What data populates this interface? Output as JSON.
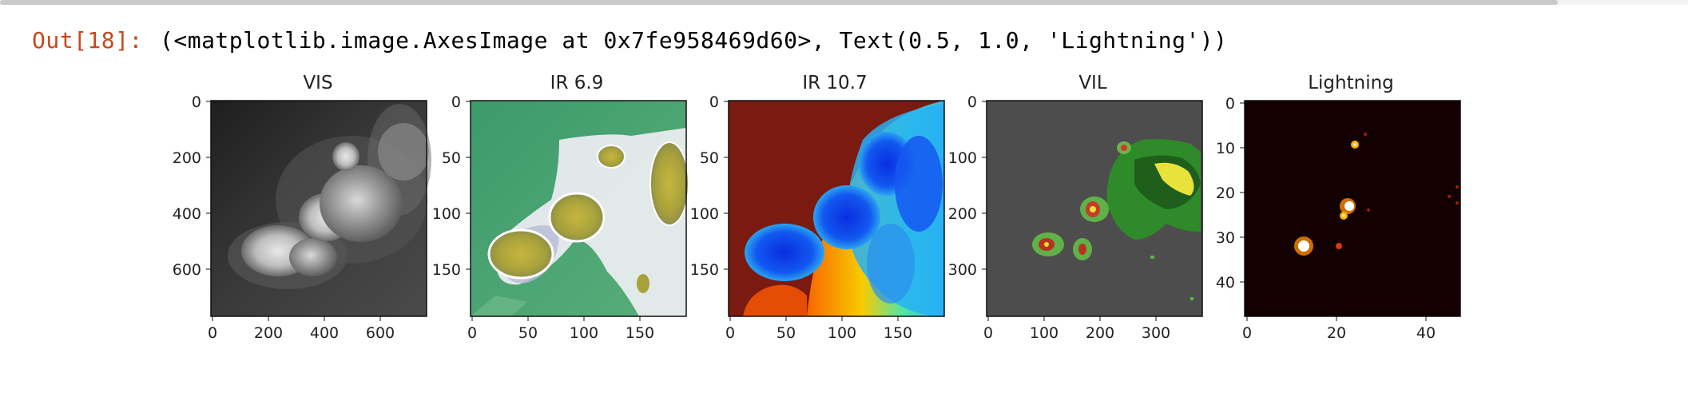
{
  "output": {
    "prompt": "Out[18]:",
    "repr": "(<matplotlib.image.AxesImage at 0x7fe958469d60>, Text(0.5, 1.0, 'Lightning'))"
  },
  "figure": {
    "panels": [
      {
        "title": "VIS",
        "cmap": "gray",
        "xticks": [
          "0",
          "200",
          "400",
          "600"
        ],
        "yticks": [
          "0",
          "200",
          "400",
          "600"
        ]
      },
      {
        "title": "IR 6.9",
        "cmap": "green-yellow",
        "xticks": [
          "0",
          "50",
          "100",
          "150"
        ],
        "yticks": [
          "0",
          "50",
          "100",
          "150"
        ]
      },
      {
        "title": "IR 10.7",
        "cmap": "jet-reversed",
        "xticks": [
          "0",
          "50",
          "100",
          "150"
        ],
        "yticks": [
          "0",
          "50",
          "100",
          "150"
        ]
      },
      {
        "title": "VIL",
        "cmap": "radar",
        "xticks": [
          "0",
          "100",
          "200",
          "300"
        ],
        "yticks": [
          "0",
          "100",
          "200",
          "300"
        ]
      },
      {
        "title": "Lightning",
        "cmap": "hot",
        "xticks": [
          "0",
          "20",
          "40"
        ],
        "yticks": [
          "0",
          "10",
          "20",
          "30",
          "40"
        ]
      }
    ]
  },
  "colors": {
    "prompt": "#c4491d",
    "vis_bg": "#2a2a2a",
    "ir69_bg": "#3f9a6a",
    "ir107_bg": "#7a1a10",
    "vil_bg": "#4d4d4d",
    "lightning_bg": "#120100"
  }
}
